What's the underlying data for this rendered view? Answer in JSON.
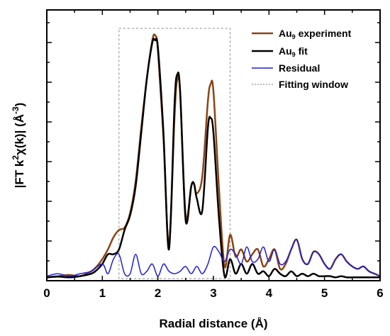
{
  "chart_data": {
    "type": "line",
    "xlabel": "Radial distance (Å)",
    "ylabel": "|FT k²χ(k)| (Å⁻³)",
    "ylabel_parts": {
      "prefix": "|FT k",
      "sup1": "2",
      "mid": "χ(k)| (Å",
      "sup2": "-3",
      "suffix": ")"
    },
    "xlim": [
      0,
      6
    ],
    "ylim": [
      0,
      1
    ],
    "xticks": [
      0,
      1,
      2,
      3,
      4,
      5,
      6
    ],
    "x_tick_labels": [
      "0",
      "1",
      "2",
      "3",
      "4",
      "5",
      "6"
    ],
    "y_tick_labels_shown": false,
    "grid": false,
    "legend_position": "top-right",
    "fitting_window": [
      1.3,
      3.3
    ],
    "series": [
      {
        "name": "Au₉ experiment",
        "legend_main": "Au",
        "legend_sub": "9",
        "legend_rest": " experiment",
        "color": "#8B4513",
        "x": [
          0,
          0.2,
          0.4,
          0.6,
          0.8,
          0.9,
          1.0,
          1.1,
          1.2,
          1.3,
          1.4,
          1.5,
          1.6,
          1.7,
          1.8,
          1.9,
          1.95,
          2.0,
          2.1,
          2.2,
          2.3,
          2.35,
          2.4,
          2.5,
          2.6,
          2.65,
          2.7,
          2.8,
          2.9,
          2.95,
          3.0,
          3.1,
          3.2,
          3.3,
          3.4,
          3.5,
          3.6,
          3.7,
          3.8,
          3.9,
          4.0,
          4.1,
          4.2,
          4.3,
          4.4,
          4.5,
          4.6,
          4.7,
          4.8,
          4.9,
          5.0,
          5.1,
          5.2,
          5.3,
          5.4,
          5.5,
          5.6,
          5.7,
          5.8,
          5.9,
          6.0
        ],
        "y": [
          0.005,
          0.01,
          0.015,
          0.01,
          0.03,
          0.05,
          0.08,
          0.12,
          0.17,
          0.2,
          0.21,
          0.27,
          0.4,
          0.62,
          0.82,
          0.98,
          1.0,
          0.94,
          0.58,
          0.14,
          0.67,
          0.82,
          0.77,
          0.26,
          0.38,
          0.39,
          0.35,
          0.42,
          0.73,
          0.8,
          0.77,
          0.37,
          0.05,
          0.18,
          0.09,
          0.12,
          0.07,
          0.1,
          0.12,
          0.05,
          0.08,
          0.12,
          0.04,
          0.06,
          0.12,
          0.16,
          0.08,
          0.06,
          0.11,
          0.1,
          0.06,
          0.04,
          0.08,
          0.1,
          0.07,
          0.05,
          0.04,
          0.05,
          0.03,
          0.02,
          0.01
        ]
      },
      {
        "name": "Au₉ fit",
        "legend_main": "Au",
        "legend_sub": "9",
        "legend_rest": " fit",
        "color": "#000000",
        "x": [
          0,
          0.2,
          0.4,
          0.6,
          0.8,
          0.9,
          1.0,
          1.1,
          1.2,
          1.3,
          1.4,
          1.5,
          1.6,
          1.7,
          1.8,
          1.9,
          1.95,
          2.0,
          2.1,
          2.2,
          2.3,
          2.35,
          2.4,
          2.5,
          2.6,
          2.65,
          2.7,
          2.8,
          2.9,
          2.95,
          3.0,
          3.1,
          3.2,
          3.3,
          3.4,
          3.5,
          3.6,
          3.7,
          3.8,
          3.9,
          4.0,
          4.1,
          4.2,
          4.3,
          4.4,
          4.5,
          4.6,
          4.7,
          4.8,
          4.9,
          5.0,
          5.1,
          5.2,
          5.3,
          5.4,
          5.5,
          5.6,
          5.7,
          5.8,
          5.9,
          6.0
        ],
        "y": [
          0.005,
          0.008,
          0.005,
          0.01,
          0.02,
          0.035,
          0.06,
          0.1,
          0.1,
          0.12,
          0.2,
          0.26,
          0.38,
          0.6,
          0.82,
          0.97,
          0.98,
          0.95,
          0.6,
          0.12,
          0.72,
          0.84,
          0.77,
          0.24,
          0.38,
          0.39,
          0.33,
          0.28,
          0.62,
          0.66,
          0.6,
          0.25,
          0.01,
          0.08,
          0.02,
          0.06,
          0.02,
          0.06,
          0.02,
          0.03,
          0.01,
          0.04,
          0.02,
          0.01,
          0.03,
          0.01,
          0.02,
          0.01,
          0.02,
          0.01,
          0.01,
          0.01,
          0.005,
          0.01,
          0.005,
          0.005,
          0.005,
          0.005,
          0.005,
          0.005,
          0.005
        ]
      },
      {
        "name": "Residual",
        "legend_main": "Residual",
        "legend_sub": "",
        "legend_rest": "",
        "color": "#1f1fd6",
        "x": [
          0,
          0.2,
          0.4,
          0.6,
          0.8,
          1.0,
          1.1,
          1.2,
          1.3,
          1.4,
          1.5,
          1.6,
          1.7,
          1.8,
          1.9,
          2.0,
          2.1,
          2.2,
          2.3,
          2.4,
          2.5,
          2.6,
          2.7,
          2.8,
          2.9,
          3.0,
          3.1,
          3.2,
          3.3,
          3.4,
          3.5,
          3.6,
          3.7,
          3.8,
          3.9,
          4.0,
          4.1,
          4.2,
          4.3,
          4.4,
          4.5,
          4.6,
          4.7,
          4.8,
          4.9,
          5.0,
          5.1,
          5.2,
          5.3,
          5.4,
          5.5,
          5.6,
          5.7,
          5.8,
          5.9,
          6.0
        ],
        "y": [
          0.01,
          0.02,
          0.01,
          0.02,
          0.03,
          0.06,
          0.02,
          0.08,
          0.1,
          0.02,
          0.02,
          0.1,
          0.02,
          0.03,
          0.06,
          0.01,
          0.06,
          0.03,
          0.02,
          0.03,
          0.05,
          0.02,
          0.05,
          0.02,
          0.06,
          0.13,
          0.11,
          0.07,
          0.12,
          0.1,
          0.06,
          0.13,
          0.07,
          0.08,
          0.13,
          0.07,
          0.12,
          0.06,
          0.07,
          0.12,
          0.16,
          0.08,
          0.06,
          0.11,
          0.1,
          0.06,
          0.04,
          0.08,
          0.1,
          0.07,
          0.05,
          0.04,
          0.05,
          0.03,
          0.02,
          0.01
        ]
      }
    ],
    "window_legend_label": "Fitting window"
  }
}
